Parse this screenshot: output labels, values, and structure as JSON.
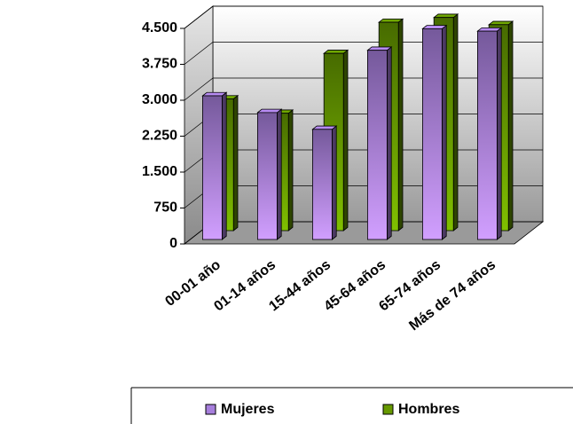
{
  "chart_data": {
    "type": "bar3d",
    "categories": [
      "00-01 año",
      "01-14 años",
      "15-44 años",
      "45-64 años",
      "65-74 años",
      "Más de 74 años"
    ],
    "series": [
      {
        "name": "Mujeres",
        "color": "#a77fdd",
        "values": [
          3000,
          2650,
          2300,
          3950,
          4400,
          4350
        ]
      },
      {
        "name": "Hombres",
        "color": "#669900",
        "values": [
          2750,
          2450,
          3700,
          4350,
          4450,
          4300
        ]
      }
    ],
    "ylim": [
      0,
      4500
    ],
    "yticks": [
      0,
      750,
      {
        "value": 1500,
        "label": "1.500"
      },
      {
        "value": 2250,
        "label": "2.250"
      },
      {
        "value": 3000,
        "label": "3.000"
      },
      {
        "value": 3750,
        "label": "3.750"
      },
      {
        "value": 4500,
        "label": "4.500"
      }
    ],
    "grid": true
  }
}
